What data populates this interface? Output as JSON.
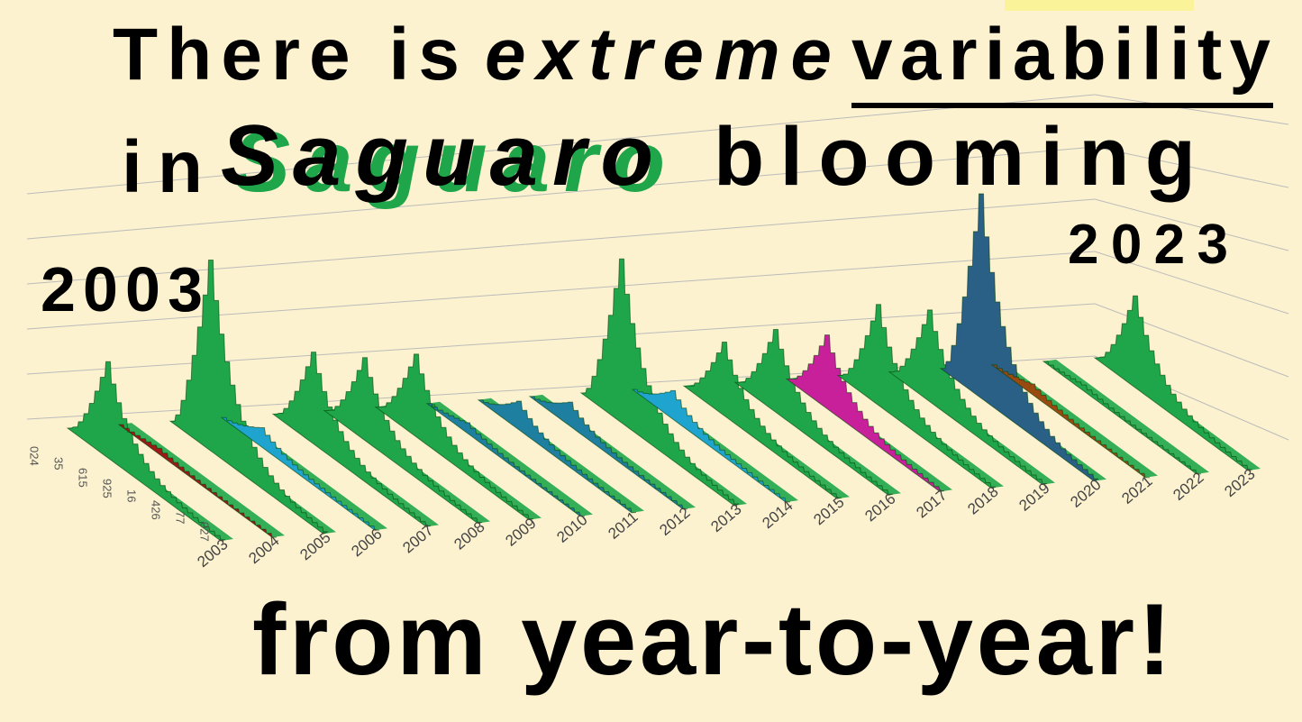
{
  "title": {
    "line1": {
      "a": "There is",
      "b": "extreme",
      "c": "variability"
    },
    "line2": {
      "a": "in",
      "b": "Saguaro",
      "c": "blooming"
    },
    "line3": "from year-to-year!"
  },
  "chart_data": {
    "type": "ridge3d",
    "categories": [
      "2003",
      "2004",
      "2005",
      "2006",
      "2007",
      "2008",
      "2009",
      "2010",
      "2011",
      "2012",
      "2013",
      "2014",
      "2015",
      "2016",
      "2017",
      "2018",
      "2019",
      "2020",
      "2021",
      "2022",
      "2023"
    ],
    "values": [
      2.1,
      0.1,
      4.2,
      0.4,
      2.0,
      1.8,
      1.8,
      0.2,
      0.6,
      0.5,
      3.6,
      0.6,
      1.6,
      1.8,
      1.6,
      2.2,
      2.0,
      4.5,
      0.2,
      0.1,
      2.0
    ],
    "colors": [
      "#1fa64a",
      "#a01818",
      "#1fa64a",
      "#1fa3cf",
      "#1fa64a",
      "#1fa64a",
      "#1fa64a",
      "#1e7fa0",
      "#1e7fa0",
      "#1e7fa0",
      "#1fa64a",
      "#1fa3cf",
      "#1fa64a",
      "#1fa64a",
      "#c7209a",
      "#1fa64a",
      "#1fa64a",
      "#2a5f86",
      "#9a4a10",
      "#1fa64a",
      "#1fa64a"
    ],
    "ylim": [
      0,
      5
    ],
    "depth_labels": [
      "024",
      "35",
      "615",
      "925",
      "16",
      "426",
      "77",
      "027"
    ],
    "annotations": {
      "first": "2003",
      "last": "2023"
    }
  }
}
